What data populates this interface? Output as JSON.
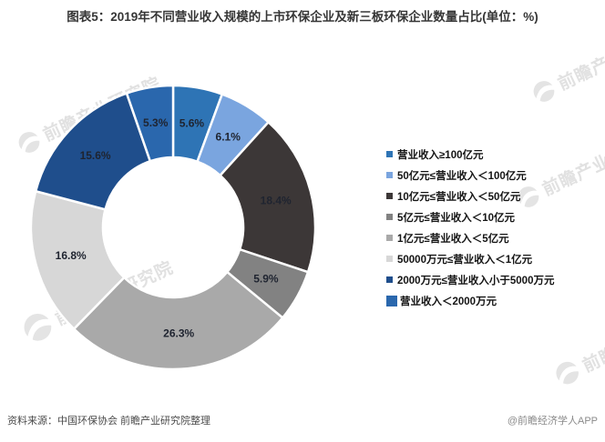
{
  "title": "图表5：2019年不同营业收入规模的上市环保企业及新三板环保企业数量占比(单位：%)",
  "chart_data": {
    "type": "pie",
    "subtype": "donut",
    "unit": "%",
    "start_angle_deg": 0,
    "direction": "clockwise",
    "legend_position": "right",
    "label_color": "#1F2430",
    "slices": [
      {
        "label": "营业收入≥100亿元",
        "value": 5.6,
        "color": "#2E74B5"
      },
      {
        "label": "50亿元≤营业收入＜100亿元",
        "value": 6.1,
        "color": "#7AA5DF"
      },
      {
        "label": "10亿元≤营业收入＜50亿元",
        "value": 18.4,
        "color": "#3C3737"
      },
      {
        "label": "5亿元≤营业收入＜10亿元",
        "value": 5.9,
        "color": "#828282"
      },
      {
        "label": "1亿元≤营业收入＜5亿元",
        "value": 26.3,
        "color": "#A9A9A9"
      },
      {
        "label": "50000万元≤营业收入＜1亿元",
        "value": 16.8,
        "color": "#D7D7D7"
      },
      {
        "label": "2000万元≤营业收入小于5000万元",
        "value": 15.6,
        "color": "#1F4E8C"
      },
      {
        "label": "营业收入＜2000万元",
        "value": 5.3,
        "color": "#2A67AD"
      }
    ],
    "data_labels": [
      "5.6%",
      "6.1%",
      "18.4%",
      "5.9%",
      "26.3%",
      "16.8%",
      "15.6%",
      "5.3%"
    ]
  },
  "watermark": {
    "text": "前瞻产业研究院"
  },
  "footer": {
    "source": "资料来源：中国环保协会 前瞻产业研究院整理",
    "credit": "@前瞻经济学人APP"
  }
}
